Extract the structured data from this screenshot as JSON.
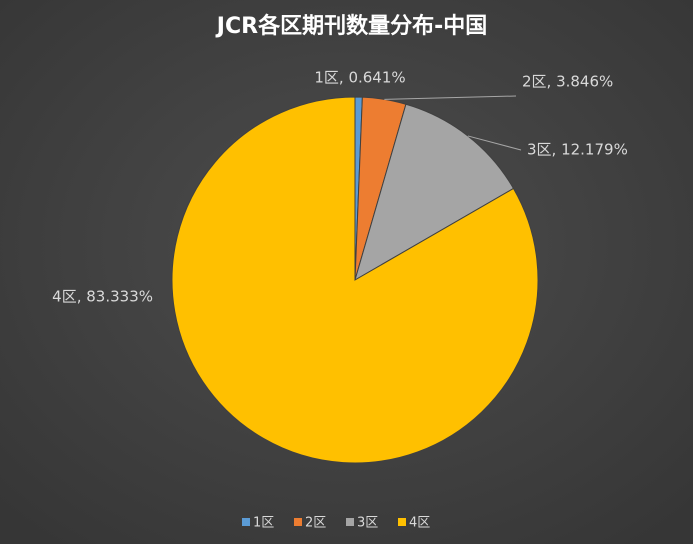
{
  "chart_data": {
    "type": "pie",
    "title": "JCR各区期刊数量分布-中国",
    "categories": [
      "1区",
      "2区",
      "3区",
      "4区"
    ],
    "values": [
      0.641,
      3.846,
      12.179,
      83.333
    ],
    "value_labels": [
      "1区, 0.641%",
      "2区, 3.846%",
      "3区, 12.179%",
      "4区, 83.333%"
    ],
    "colors": [
      "#5b9bd5",
      "#ed7d31",
      "#a5a5a5",
      "#ffc000"
    ],
    "legend": "bottom"
  }
}
